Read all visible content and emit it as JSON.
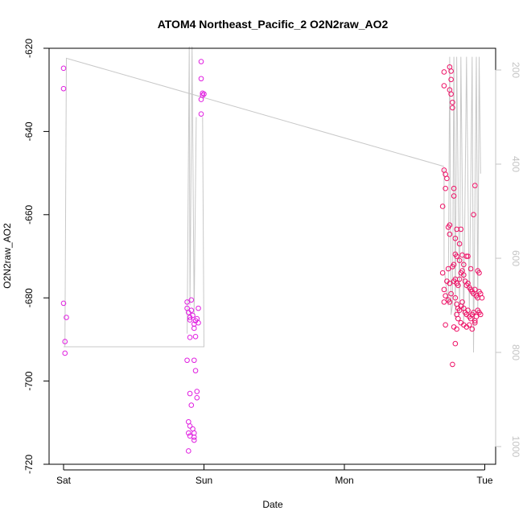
{
  "chart_data": {
    "type": "scatter",
    "title": "ATOM4 Northeast_Pacific_2 O2N2raw_AO2",
    "xlabel": "Date",
    "ylabel": "O2N2raw_AO2",
    "x_ticks": [
      "Sat",
      "Sun",
      "Mon",
      "Tue"
    ],
    "xlim": [
      0,
      3.07
    ],
    "ylim": [
      -720,
      -620
    ],
    "y_ticks": [
      -620,
      -640,
      -660,
      -680,
      -700,
      -720
    ],
    "y2_ticks": [
      200,
      400,
      600,
      800,
      1000
    ],
    "y2lim": [
      1040,
      170
    ],
    "colors": {
      "points_early": "#e020e0",
      "points_late": "#ee1166",
      "depth_line": "#c8c8c8",
      "right_axis": "#c4c4c4"
    },
    "series": [
      {
        "points": [
          [
            0.0,
            -624.8
          ],
          [
            0.0,
            -629.7
          ],
          [
            0.0,
            -681.3
          ],
          [
            0.02,
            -684.7
          ],
          [
            0.01,
            -690.5
          ],
          [
            0.01,
            -693.3
          ],
          [
            0.88,
            -681.0
          ],
          [
            0.88,
            -682.5
          ],
          [
            0.89,
            -683.5
          ],
          [
            0.9,
            -684.7
          ],
          [
            0.9,
            -685.3
          ],
          [
            0.88,
            -695.0
          ],
          [
            0.9,
            -689.5
          ],
          [
            0.91,
            -680.5
          ],
          [
            0.91,
            -683.0
          ],
          [
            0.92,
            -684.2
          ],
          [
            0.93,
            -686.3
          ],
          [
            0.93,
            -687.3
          ],
          [
            0.94,
            -685.5
          ],
          [
            0.95,
            -685.0
          ],
          [
            0.96,
            -682.5
          ],
          [
            0.96,
            -686.0
          ],
          [
            0.94,
            -689.3
          ],
          [
            0.93,
            -695.0
          ],
          [
            0.94,
            -697.5
          ],
          [
            0.9,
            -703.0
          ],
          [
            0.91,
            -705.8
          ],
          [
            0.95,
            -702.5
          ],
          [
            0.95,
            -704.0
          ],
          [
            0.89,
            -709.8
          ],
          [
            0.9,
            -710.8
          ],
          [
            0.89,
            -712.5
          ],
          [
            0.9,
            -713.2
          ],
          [
            0.92,
            -711.5
          ],
          [
            0.93,
            -712.5
          ],
          [
            0.93,
            -713.5
          ],
          [
            0.93,
            -714.2
          ],
          [
            0.89,
            -716.8
          ],
          [
            0.98,
            -623.2
          ],
          [
            0.98,
            -627.3
          ],
          [
            0.99,
            -630.8
          ],
          [
            0.99,
            -631.3
          ],
          [
            1.0,
            -631.0
          ],
          [
            0.98,
            -632.3
          ],
          [
            0.98,
            -635.8
          ]
        ]
      },
      {
        "points": [
          [
            2.71,
            -625.7
          ],
          [
            2.71,
            -629.0
          ],
          [
            2.71,
            -649.3
          ],
          [
            2.72,
            -650.3
          ],
          [
            2.73,
            -651.3
          ],
          [
            2.72,
            -653.7
          ],
          [
            2.7,
            -658.0
          ],
          [
            2.75,
            -624.5
          ],
          [
            2.76,
            -625.5
          ],
          [
            2.76,
            -627.5
          ],
          [
            2.76,
            -631.0
          ],
          [
            2.77,
            -633.0
          ],
          [
            2.75,
            -630.0
          ],
          [
            2.77,
            -634.3
          ],
          [
            2.78,
            -653.7
          ],
          [
            2.75,
            -662.5
          ],
          [
            2.75,
            -664.7
          ],
          [
            2.8,
            -663.5
          ],
          [
            2.79,
            -665.7
          ],
          [
            2.82,
            -667.0
          ],
          [
            2.79,
            -669.5
          ],
          [
            2.8,
            -670.0
          ],
          [
            2.84,
            -669.7
          ],
          [
            2.87,
            -670.0
          ],
          [
            2.78,
            -672.0
          ],
          [
            2.77,
            -672.5
          ],
          [
            2.74,
            -673.0
          ],
          [
            2.7,
            -674.0
          ],
          [
            2.73,
            -676.0
          ],
          [
            2.75,
            -676.5
          ],
          [
            2.71,
            -678.0
          ],
          [
            2.76,
            -679.0
          ],
          [
            2.72,
            -679.5
          ],
          [
            2.74,
            -680.5
          ],
          [
            2.75,
            -681.0
          ],
          [
            2.71,
            -681.0
          ],
          [
            2.78,
            -676.0
          ],
          [
            2.79,
            -675.5
          ],
          [
            2.8,
            -676.5
          ],
          [
            2.81,
            -677.0
          ],
          [
            2.82,
            -675.5
          ],
          [
            2.83,
            -674.0
          ],
          [
            2.84,
            -673.5
          ],
          [
            2.85,
            -674.5
          ],
          [
            2.86,
            -676.0
          ],
          [
            2.87,
            -677.0
          ],
          [
            2.88,
            -676.5
          ],
          [
            2.89,
            -677.5
          ],
          [
            2.9,
            -678.0
          ],
          [
            2.91,
            -678.5
          ],
          [
            2.92,
            -679.0
          ],
          [
            2.93,
            -678.0
          ],
          [
            2.94,
            -679.5
          ],
          [
            2.95,
            -680.0
          ],
          [
            2.96,
            -678.5
          ],
          [
            2.97,
            -679.0
          ],
          [
            2.98,
            -680.0
          ],
          [
            2.79,
            -680.0
          ],
          [
            2.8,
            -681.5
          ],
          [
            2.81,
            -682.5
          ],
          [
            2.82,
            -683.0
          ],
          [
            2.83,
            -682.0
          ],
          [
            2.84,
            -681.0
          ],
          [
            2.85,
            -682.5
          ],
          [
            2.86,
            -683.5
          ],
          [
            2.87,
            -684.0
          ],
          [
            2.88,
            -683.0
          ],
          [
            2.89,
            -684.5
          ],
          [
            2.9,
            -685.0
          ],
          [
            2.91,
            -684.0
          ],
          [
            2.92,
            -683.5
          ],
          [
            2.93,
            -685.5
          ],
          [
            2.94,
            -684.5
          ],
          [
            2.95,
            -683.0
          ],
          [
            2.96,
            -683.5
          ],
          [
            2.97,
            -684.0
          ],
          [
            2.8,
            -684.0
          ],
          [
            2.81,
            -685.0
          ],
          [
            2.83,
            -686.0
          ],
          [
            2.85,
            -686.5
          ],
          [
            2.87,
            -687.0
          ],
          [
            2.89,
            -686.5
          ],
          [
            2.91,
            -687.5
          ],
          [
            2.93,
            -686.0
          ],
          [
            2.78,
            -687.0
          ],
          [
            2.8,
            -687.5
          ],
          [
            2.72,
            -686.5
          ],
          [
            2.79,
            -691.0
          ],
          [
            2.77,
            -696.0
          ],
          [
            2.82,
            -671.0
          ],
          [
            2.85,
            -672.0
          ],
          [
            2.9,
            -673.0
          ],
          [
            2.92,
            -660.0
          ],
          [
            2.93,
            -653.0
          ],
          [
            2.95,
            -673.5
          ],
          [
            2.96,
            -674.0
          ],
          [
            2.88,
            -670.0
          ],
          [
            2.83,
            -663.5
          ],
          [
            2.78,
            -655.5
          ],
          [
            2.74,
            -663.0
          ]
        ]
      },
      {
        "name_hidden": true,
        "line_x": [
          0.0,
          0.01,
          0.02,
          1.0,
          2.71,
          2.71,
          2.74,
          2.75,
          2.76,
          2.77,
          2.78,
          2.79,
          2.8,
          2.82,
          2.83,
          2.85,
          2.87,
          2.89,
          2.91,
          2.92,
          2.94,
          2.95,
          2.96,
          2.97
        ],
        "line_depth": [
          780,
          780,
          190,
          300,
          410,
          620,
          700,
          150,
          720,
          700,
          150,
          730,
          150,
          720,
          150,
          740,
          150,
          720,
          150,
          800,
          150,
          720,
          150,
          420
        ]
      }
    ],
    "depth_line_main": [
      [
        0.0,
        780
      ],
      [
        0.01,
        780
      ],
      [
        0.02,
        190
      ],
      [
        1.0,
        300
      ],
      [
        2.71,
        410
      ],
      [
        0.02,
        800
      ],
      [
        0.98,
        800
      ],
      [
        0.98,
        300
      ]
    ],
    "depth_spikes_sun": [
      [
        0.88,
        800
      ],
      [
        0.89,
        180
      ],
      [
        0.9,
        700
      ],
      [
        0.91,
        180
      ],
      [
        0.92,
        720
      ],
      [
        0.93,
        300
      ]
    ]
  }
}
